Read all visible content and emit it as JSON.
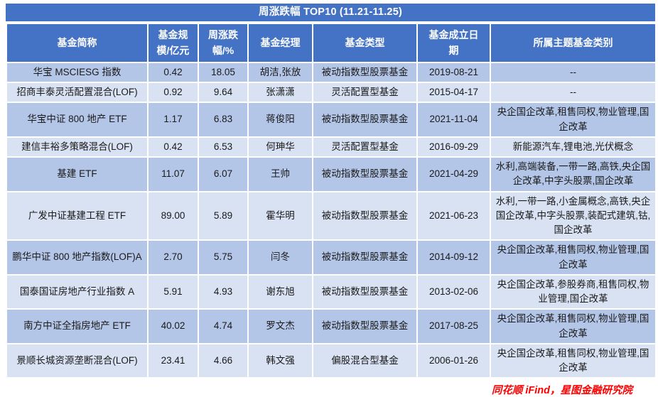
{
  "chart_data": {
    "type": "table",
    "title": "周涨跌幅 TOP10 (11.21-11.25)",
    "columns": [
      "基金简称",
      "基金规模/亿元",
      "周涨跌幅/%",
      "基金经理",
      "基金类型",
      "基金成立日期",
      "所属主题基金类别"
    ],
    "rows": [
      [
        "华宝 MSCIESG 指数",
        "0.42",
        "18.05",
        "胡洁,张放",
        "被动指数型股票基金",
        "2019-08-21",
        "--"
      ],
      [
        "招商丰泰灵活配置混合(LOF)",
        "0.92",
        "9.64",
        "张潇潇",
        "灵活配置型基金",
        "2015-04-17",
        "--"
      ],
      [
        "华宝中证 800 地产 ETF",
        "1.17",
        "6.83",
        "蒋俊阳",
        "被动指数型股票基金",
        "2021-11-04",
        "央企国企改革,租售同权,物业管理,国企改革"
      ],
      [
        "建信丰裕多策略混合(LOF)",
        "0.42",
        "6.53",
        "何珅华",
        "灵活配置型基金",
        "2016-09-29",
        "新能源汽车,锂电池,光伏概念"
      ],
      [
        "基建 ETF",
        "11.07",
        "6.07",
        "王帅",
        "被动指数型股票基金",
        "2021-04-29",
        "水利,高端装备,一带一路,高铁,央企国企改革,中字头股票,国企改革"
      ],
      [
        "广发中证基建工程 ETF",
        "89.00",
        "5.89",
        "霍华明",
        "被动指数型股票基金",
        "2021-06-23",
        "水利,一带一路,小金属概念,高铁,央企国企改革,中字头股票,装配式建筑,钴,国企改革"
      ],
      [
        "鹏华中证 800 地产指数(LOF)A",
        "2.70",
        "5.75",
        "闫冬",
        "被动指数型股票基金",
        "2014-09-12",
        "央企国企改革,租售同权,物业管理,国企改革"
      ],
      [
        "国泰国证房地产行业指数 A",
        "5.91",
        "4.93",
        "谢东旭",
        "被动指数型股票基金",
        "2013-02-06",
        "央企国企改革,参股券商,租售同权,物业管理,国企改革"
      ],
      [
        "南方中证全指房地产 ETF",
        "40.02",
        "4.74",
        "罗文杰",
        "被动指数型股票基金",
        "2017-08-25",
        "央企国企改革,租售同权,物业管理,国企改革"
      ],
      [
        "景顺长城资源垄断混合(LOF)",
        "23.41",
        "4.66",
        "韩文强",
        "偏股混合型基金",
        "2006-01-26",
        "央企国企改革,租售同权,物业管理,国企改革"
      ]
    ],
    "source": "同花顺 iFind，星图金融研究院",
    "colors": {
      "header_bg": "#4472C4",
      "row_odd_bg": "#B4C6E7",
      "row_even_bg": "#D9E2F3",
      "header_text": "#FFFFFF",
      "body_text": "#1A1A1A",
      "source_text": "#FF0000"
    }
  }
}
